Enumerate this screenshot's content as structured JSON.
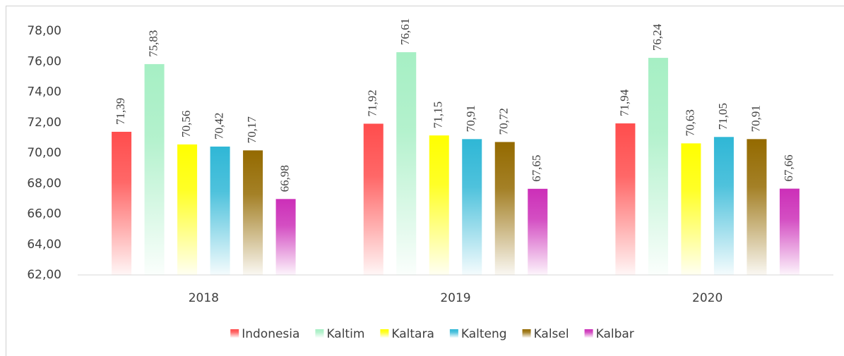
{
  "chart_data": {
    "type": "bar",
    "categories": [
      "2018",
      "2019",
      "2020"
    ],
    "series": [
      {
        "name": "Indonesia",
        "color": "#ff4d4d",
        "values": [
          71.39,
          71.92,
          71.94
        ],
        "value_labels": [
          "71,39",
          "71,92",
          "71,94"
        ]
      },
      {
        "name": "Kaltim",
        "color": "#a6efc4",
        "values": [
          75.83,
          76.61,
          76.24
        ],
        "value_labels": [
          "75,83",
          "76,61",
          "76,24"
        ]
      },
      {
        "name": "Kaltara",
        "color": "#ffff00",
        "values": [
          70.56,
          71.15,
          70.63
        ],
        "value_labels": [
          "70,56",
          "71,15",
          "70,63"
        ]
      },
      {
        "name": "Kalteng",
        "color": "#2fb7d6",
        "values": [
          70.42,
          70.91,
          71.05
        ],
        "value_labels": [
          "70,42",
          "70,91",
          "71,05"
        ]
      },
      {
        "name": "Kalsel",
        "color": "#946a00",
        "values": [
          70.17,
          70.72,
          70.91
        ],
        "value_labels": [
          "70,17",
          "70,72",
          "70,91"
        ]
      },
      {
        "name": "Kalbar",
        "color": "#cc2fb8",
        "values": [
          66.98,
          67.65,
          67.66
        ],
        "value_labels": [
          "66,98",
          "67,65",
          "67,66"
        ]
      }
    ],
    "ylim": [
      62,
      78
    ],
    "yticks": [
      {
        "value": 62,
        "label": "62,00"
      },
      {
        "value": 64,
        "label": "64,00"
      },
      {
        "value": 66,
        "label": "66,00"
      },
      {
        "value": 68,
        "label": "68,00"
      },
      {
        "value": 70,
        "label": "70,00"
      },
      {
        "value": 72,
        "label": "72,00"
      },
      {
        "value": 74,
        "label": "74,00"
      },
      {
        "value": 76,
        "label": "76,00"
      },
      {
        "value": 78,
        "label": "78,00"
      }
    ],
    "grid": false,
    "legend": "bottom"
  }
}
